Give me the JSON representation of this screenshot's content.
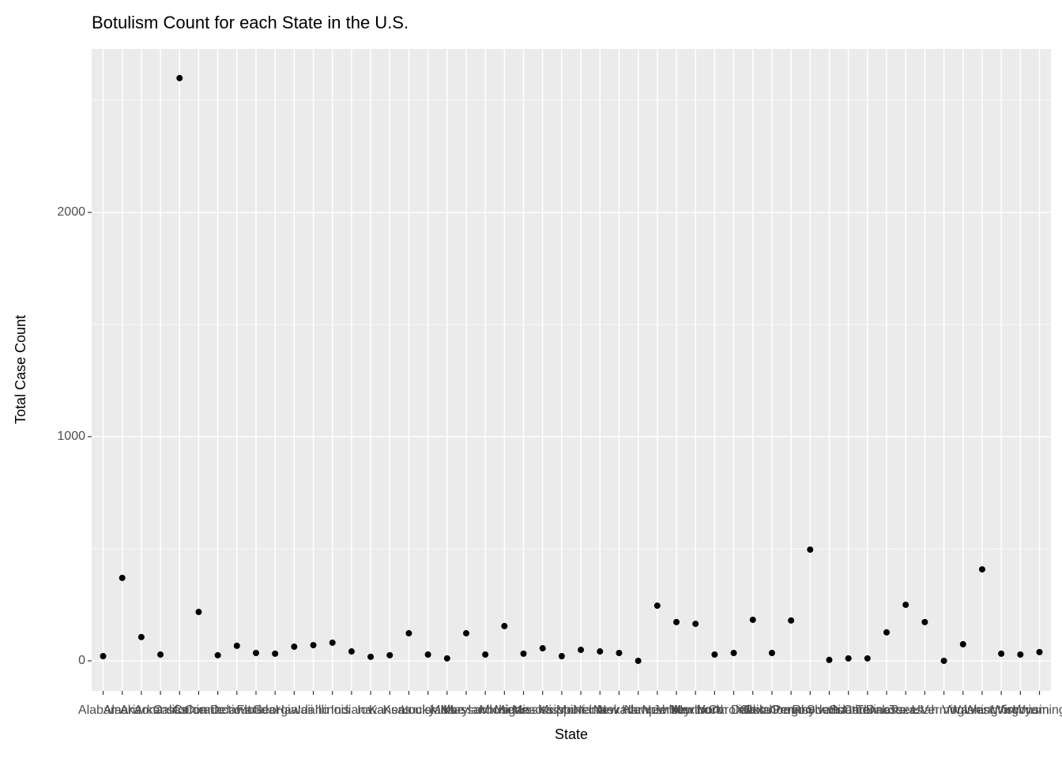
{
  "chart_data": {
    "type": "scatter",
    "title": "Botulism Count for each State in the U.S.",
    "x_label": "State",
    "y_label": "Total Case Count",
    "categories": [
      "Alabama",
      "Alaska",
      "Arizona",
      "Arkansas",
      "California",
      "Colorado",
      "Connecticut",
      "Delaware",
      "Florida",
      "Georgia",
      "Hawaii",
      "Idaho",
      "Illinois",
      "Indiana",
      "Iowa",
      "Kansas",
      "Kentucky",
      "Louisiana",
      "Maine",
      "Maryland",
      "Massachusetts",
      "Michigan",
      "Minnesota",
      "Mississippi",
      "Missouri",
      "Montana",
      "Nebraska",
      "Nevada",
      "New Hampshire",
      "New Jersey",
      "New Mexico",
      "New York",
      "North Carolina",
      "North Dakota",
      "Ohio",
      "Oklahoma",
      "Oregon",
      "Pennsylvania",
      "Rhode Island",
      "South Carolina",
      "South Dakota",
      "Tennessee",
      "Texas",
      "Utah",
      "Vermont",
      "Virginia",
      "Washington",
      "West Virginia",
      "Wisconsin",
      "Wyoming"
    ],
    "values": [
      21,
      370,
      106,
      28,
      2599,
      218,
      25,
      67,
      35,
      32,
      63,
      70,
      81,
      42,
      18,
      25,
      123,
      28,
      11,
      123,
      28,
      155,
      32,
      56,
      21,
      49,
      42,
      35,
      0,
      246,
      173,
      165,
      28,
      35,
      183,
      35,
      180,
      496,
      4,
      11,
      11,
      127,
      250,
      173,
      0,
      74,
      408,
      32,
      28,
      39
    ],
    "color": "#000000",
    "ylim": [
      -134,
      2729
    ],
    "yticks": [
      0,
      1000,
      2000
    ],
    "grid": true
  }
}
